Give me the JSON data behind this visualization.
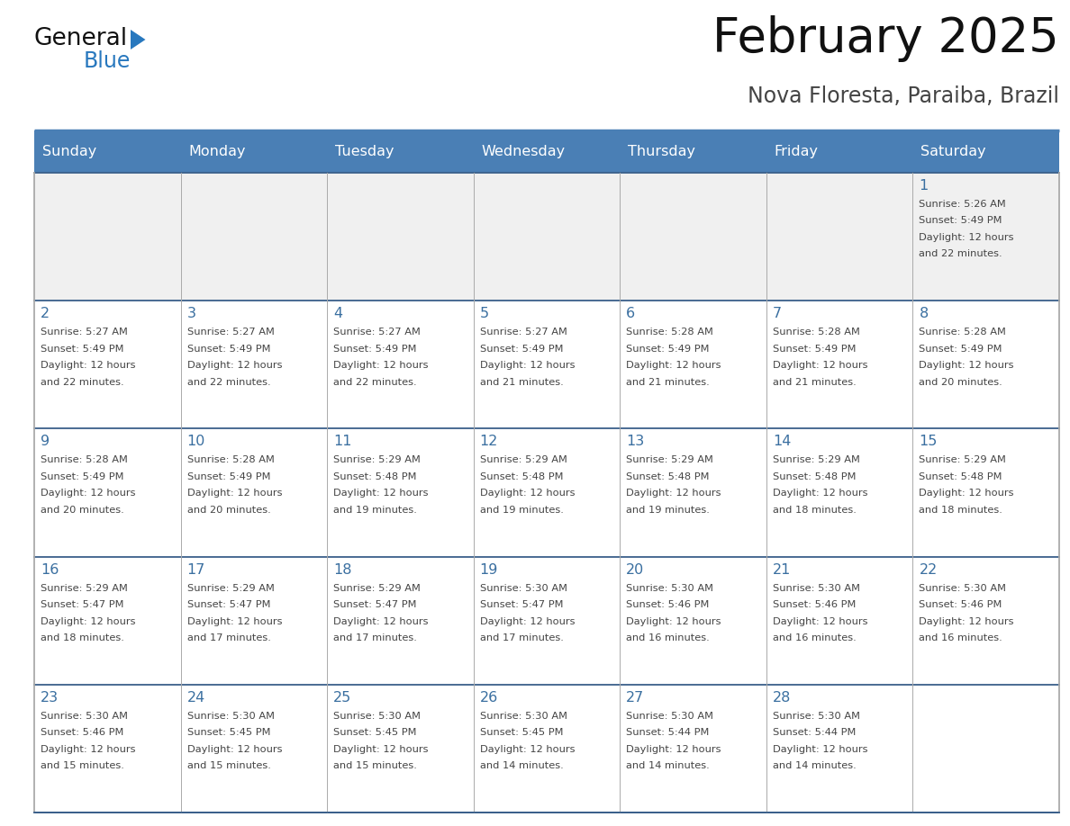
{
  "title": "February 2025",
  "subtitle": "Nova Floresta, Paraiba, Brazil",
  "days_of_week": [
    "Sunday",
    "Monday",
    "Tuesday",
    "Wednesday",
    "Thursday",
    "Friday",
    "Saturday"
  ],
  "header_bg": "#4a7fb5",
  "header_text": "#ffffff",
  "cell_bg": "#ffffff",
  "first_row_bg": "#f0f0f0",
  "day_num_color": "#3a6fa0",
  "text_color": "#444444",
  "h_line_color": "#3a5f8a",
  "v_line_color": "#aaaaaa",
  "logo_general_color": "#111111",
  "logo_blue_color": "#2878be",
  "weeks": [
    [
      {
        "day": null,
        "info": null
      },
      {
        "day": null,
        "info": null
      },
      {
        "day": null,
        "info": null
      },
      {
        "day": null,
        "info": null
      },
      {
        "day": null,
        "info": null
      },
      {
        "day": null,
        "info": null
      },
      {
        "day": 1,
        "info": "Sunrise: 5:26 AM\nSunset: 5:49 PM\nDaylight: 12 hours\nand 22 minutes."
      }
    ],
    [
      {
        "day": 2,
        "info": "Sunrise: 5:27 AM\nSunset: 5:49 PM\nDaylight: 12 hours\nand 22 minutes."
      },
      {
        "day": 3,
        "info": "Sunrise: 5:27 AM\nSunset: 5:49 PM\nDaylight: 12 hours\nand 22 minutes."
      },
      {
        "day": 4,
        "info": "Sunrise: 5:27 AM\nSunset: 5:49 PM\nDaylight: 12 hours\nand 22 minutes."
      },
      {
        "day": 5,
        "info": "Sunrise: 5:27 AM\nSunset: 5:49 PM\nDaylight: 12 hours\nand 21 minutes."
      },
      {
        "day": 6,
        "info": "Sunrise: 5:28 AM\nSunset: 5:49 PM\nDaylight: 12 hours\nand 21 minutes."
      },
      {
        "day": 7,
        "info": "Sunrise: 5:28 AM\nSunset: 5:49 PM\nDaylight: 12 hours\nand 21 minutes."
      },
      {
        "day": 8,
        "info": "Sunrise: 5:28 AM\nSunset: 5:49 PM\nDaylight: 12 hours\nand 20 minutes."
      }
    ],
    [
      {
        "day": 9,
        "info": "Sunrise: 5:28 AM\nSunset: 5:49 PM\nDaylight: 12 hours\nand 20 minutes."
      },
      {
        "day": 10,
        "info": "Sunrise: 5:28 AM\nSunset: 5:49 PM\nDaylight: 12 hours\nand 20 minutes."
      },
      {
        "day": 11,
        "info": "Sunrise: 5:29 AM\nSunset: 5:48 PM\nDaylight: 12 hours\nand 19 minutes."
      },
      {
        "day": 12,
        "info": "Sunrise: 5:29 AM\nSunset: 5:48 PM\nDaylight: 12 hours\nand 19 minutes."
      },
      {
        "day": 13,
        "info": "Sunrise: 5:29 AM\nSunset: 5:48 PM\nDaylight: 12 hours\nand 19 minutes."
      },
      {
        "day": 14,
        "info": "Sunrise: 5:29 AM\nSunset: 5:48 PM\nDaylight: 12 hours\nand 18 minutes."
      },
      {
        "day": 15,
        "info": "Sunrise: 5:29 AM\nSunset: 5:48 PM\nDaylight: 12 hours\nand 18 minutes."
      }
    ],
    [
      {
        "day": 16,
        "info": "Sunrise: 5:29 AM\nSunset: 5:47 PM\nDaylight: 12 hours\nand 18 minutes."
      },
      {
        "day": 17,
        "info": "Sunrise: 5:29 AM\nSunset: 5:47 PM\nDaylight: 12 hours\nand 17 minutes."
      },
      {
        "day": 18,
        "info": "Sunrise: 5:29 AM\nSunset: 5:47 PM\nDaylight: 12 hours\nand 17 minutes."
      },
      {
        "day": 19,
        "info": "Sunrise: 5:30 AM\nSunset: 5:47 PM\nDaylight: 12 hours\nand 17 minutes."
      },
      {
        "day": 20,
        "info": "Sunrise: 5:30 AM\nSunset: 5:46 PM\nDaylight: 12 hours\nand 16 minutes."
      },
      {
        "day": 21,
        "info": "Sunrise: 5:30 AM\nSunset: 5:46 PM\nDaylight: 12 hours\nand 16 minutes."
      },
      {
        "day": 22,
        "info": "Sunrise: 5:30 AM\nSunset: 5:46 PM\nDaylight: 12 hours\nand 16 minutes."
      }
    ],
    [
      {
        "day": 23,
        "info": "Sunrise: 5:30 AM\nSunset: 5:46 PM\nDaylight: 12 hours\nand 15 minutes."
      },
      {
        "day": 24,
        "info": "Sunrise: 5:30 AM\nSunset: 5:45 PM\nDaylight: 12 hours\nand 15 minutes."
      },
      {
        "day": 25,
        "info": "Sunrise: 5:30 AM\nSunset: 5:45 PM\nDaylight: 12 hours\nand 15 minutes."
      },
      {
        "day": 26,
        "info": "Sunrise: 5:30 AM\nSunset: 5:45 PM\nDaylight: 12 hours\nand 14 minutes."
      },
      {
        "day": 27,
        "info": "Sunrise: 5:30 AM\nSunset: 5:44 PM\nDaylight: 12 hours\nand 14 minutes."
      },
      {
        "day": 28,
        "info": "Sunrise: 5:30 AM\nSunset: 5:44 PM\nDaylight: 12 hours\nand 14 minutes."
      },
      {
        "day": null,
        "info": null
      }
    ]
  ],
  "figsize": [
    11.88,
    9.18
  ],
  "dpi": 100
}
